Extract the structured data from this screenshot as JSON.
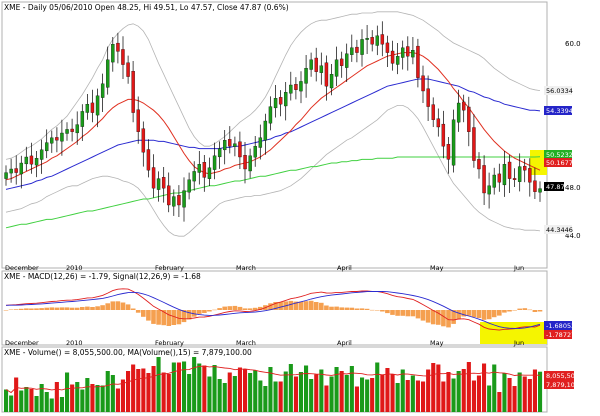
{
  "header": {
    "price_text": "XME - Daily 05/06/2010 Open 48.25, Hi 49.51, Lo 47.57, Close 47.87 (0.6%)",
    "macd_text": "XME - MACD(12,26) = -1.79, Signal(12,26,9) = -1.68",
    "volume_text": "XME - Volume() = 8,055,500.00, MA(Volume(),15) = 7,879,100.00"
  },
  "time_axis": {
    "labels": [
      "December",
      "2010",
      "February",
      "March",
      "April",
      "May",
      "Jun"
    ]
  },
  "price_panel": {
    "y_ticks": [
      {
        "label": "60.0",
        "value": 60.0
      },
      {
        "label": "48.0",
        "value": 48.0
      },
      {
        "label": "44.0",
        "value": 44.0
      }
    ],
    "value_tags": [
      {
        "label": "56.0334",
        "value": 56.0334,
        "bg": "#f0f0f0",
        "fg": "#000000"
      },
      {
        "label": "54.3394",
        "value": 54.3394,
        "bg": "#2525c8",
        "fg": "#ffffff"
      },
      {
        "label": "50.5232",
        "value": 50.5232,
        "bg": "#24b024",
        "fg": "#ffffff"
      },
      {
        "label": "50.1677",
        "value": 50.1677,
        "bg": "#e02020",
        "fg": "#ffffff"
      },
      {
        "label": "47.87",
        "value": 47.87,
        "bg": "#000000",
        "fg": "#ffffff"
      },
      {
        "label": "44.3446",
        "value": 44.3446,
        "bg": "#f0f0f0",
        "fg": "#000000"
      }
    ]
  },
  "macd_panel": {
    "value_tags": [
      {
        "label": "-1.68052",
        "bg": "#2525c8",
        "fg": "#ffffff"
      },
      {
        "label": "-1.78727",
        "bg": "#e02020",
        "fg": "#ffffff"
      }
    ]
  },
  "volume_panel": {
    "value_tags": [
      {
        "label": "8,055,500",
        "bg": "#e02020",
        "fg": "#ffffff"
      },
      {
        "label": "7,879,100",
        "bg": "#e02020",
        "fg": "#ffffff"
      }
    ]
  },
  "colors": {
    "up": "#1a9a1a",
    "down": "#e01818",
    "sma_short": "#e03020",
    "sma_mid": "#2a2ad0",
    "sma_long": "#40d040",
    "bands": "#b4b4b4",
    "macd": "#2a2ad0",
    "signal": "#e02020",
    "histogram": "#f5a050",
    "highlight": "#f5f500"
  },
  "chart_data": {
    "type": "line",
    "symbol": "XME",
    "date": "05/06/2010",
    "ohlc": {
      "open": 48.25,
      "high": 49.51,
      "low": 47.57,
      "close": 47.87,
      "change_pct": 0.6
    },
    "close": [
      49.2,
      49.5,
      49.2,
      50.0,
      50.5,
      49.9,
      50.4,
      51.1,
      51.7,
      52.1,
      51.9,
      52.5,
      52.8,
      52.6,
      53.2,
      54.3,
      54.9,
      54.2,
      55.6,
      56.6,
      58.6,
      59.9,
      59.3,
      58.2,
      57.2,
      54.2,
      52.6,
      50.9,
      49.4,
      47.9,
      48.7,
      47.9,
      46.5,
      47.2,
      46.5,
      47.7,
      48.6,
      49.3,
      49.9,
      48.8,
      49.6,
      50.6,
      51.2,
      51.9,
      51.4,
      51.6,
      50.5,
      49.5,
      50.6,
      51.4,
      52.1,
      53.5,
      54.7,
      55.4,
      54.9,
      55.9,
      56.5,
      56.1,
      56.8,
      57.9,
      58.6,
      57.6,
      58.1,
      56.4,
      57.4,
      58.6,
      58.1,
      59.1,
      59.6,
      59.2,
      60.3,
      60.4,
      59.9,
      60.6,
      59.9,
      59.2,
      58.3,
      58.9,
      59.6,
      58.9,
      59.4,
      57.1,
      56.0,
      54.7,
      53.6,
      53.0,
      51.4,
      50.3,
      53.6,
      55.0,
      54.4,
      52.6,
      50.2,
      49.5,
      47.5,
      48.1,
      49.0,
      48.4,
      49.9,
      48.7,
      48.6,
      49.7,
      49.4,
      48.4,
      47.6,
      47.87
    ],
    "sma_short": [
      48.6,
      48.7,
      48.9,
      49.1,
      49.3,
      49.5,
      49.7,
      49.9,
      50.1,
      50.4,
      50.6,
      50.9,
      51.2,
      51.5,
      51.8,
      52.2,
      52.5,
      52.9,
      53.3,
      53.7,
      54.2,
      54.6,
      54.9,
      55.1,
      55.3,
      55.3,
      55.2,
      55.0,
      54.7,
      54.4,
      54.0,
      53.5,
      52.9,
      52.2,
      51.5,
      50.8,
      50.2,
      49.7,
      49.4,
      49.2,
      49.1,
      49.2,
      49.3,
      49.5,
      49.6,
      49.8,
      49.9,
      50.0,
      50.1,
      50.3,
      50.5,
      50.8,
      51.1,
      51.5,
      51.9,
      52.3,
      52.7,
      53.2,
      53.6,
      54.1,
      54.6,
      55.0,
      55.4,
      55.7,
      56.0,
      56.3,
      56.6,
      56.9,
      57.2,
      57.5,
      57.8,
      58.1,
      58.3,
      58.5,
      58.7,
      58.9,
      59.0,
      59.1,
      59.2,
      59.2,
      59.2,
      59.1,
      58.9,
      58.6,
      58.2,
      57.8,
      57.3,
      56.8,
      56.2,
      55.7,
      55.1,
      54.6,
      54.0,
      53.4,
      52.8,
      52.3,
      51.8,
      51.4,
      51.0,
      50.7,
      50.4,
      50.2,
      50.0,
      49.8,
      49.6,
      49.4
    ],
    "sma_mid": [
      47.8,
      47.9,
      48.0,
      48.1,
      48.2,
      48.3,
      48.5,
      48.6,
      48.8,
      48.9,
      49.1,
      49.3,
      49.5,
      49.7,
      49.9,
      50.1,
      50.3,
      50.5,
      50.7,
      50.9,
      51.1,
      51.3,
      51.5,
      51.6,
      51.7,
      51.8,
      51.9,
      51.9,
      51.9,
      51.9,
      51.8,
      51.8,
      51.7,
      51.6,
      51.5,
      51.4,
      51.3,
      51.3,
      51.2,
      51.2,
      51.2,
      51.2,
      51.2,
      51.3,
      51.3,
      51.4,
      51.4,
      51.5,
      51.6,
      51.7,
      51.8,
      51.9,
      52.0,
      52.2,
      52.3,
      52.5,
      52.6,
      52.8,
      53.0,
      53.2,
      53.4,
      53.6,
      53.8,
      54.0,
      54.2,
      54.4,
      54.6,
      54.8,
      55.0,
      55.2,
      55.4,
      55.6,
      55.8,
      56.0,
      56.2,
      56.4,
      56.5,
      56.6,
      56.7,
      56.8,
      56.9,
      57.0,
      57.0,
      57.0,
      56.9,
      56.8,
      56.7,
      56.6,
      56.5,
      56.4,
      56.2,
      56.0,
      55.9,
      55.7,
      55.5,
      55.4,
      55.2,
      55.1,
      54.9,
      54.8,
      54.7,
      54.6,
      54.5,
      54.4,
      54.4,
      54.3394
    ],
    "sma_long": [
      44.6,
      44.7,
      44.8,
      44.9,
      44.9,
      45.0,
      45.1,
      45.2,
      45.3,
      45.3,
      45.4,
      45.5,
      45.6,
      45.7,
      45.8,
      45.9,
      46.0,
      46.0,
      46.1,
      46.2,
      46.3,
      46.4,
      46.5,
      46.6,
      46.7,
      46.8,
      46.9,
      47.0,
      47.0,
      47.1,
      47.2,
      47.3,
      47.4,
      47.5,
      47.5,
      47.6,
      47.7,
      47.8,
      47.9,
      48.0,
      48.1,
      48.1,
      48.2,
      48.3,
      48.4,
      48.5,
      48.5,
      48.6,
      48.7,
      48.8,
      48.9,
      48.9,
      49.0,
      49.1,
      49.2,
      49.3,
      49.4,
      49.4,
      49.5,
      49.6,
      49.7,
      49.7,
      49.8,
      49.9,
      50.0,
      50.0,
      50.1,
      50.1,
      50.2,
      50.2,
      50.3,
      50.3,
      50.3,
      50.4,
      50.4,
      50.4,
      50.4,
      50.5,
      50.5,
      50.5,
      50.5,
      50.5,
      50.5,
      50.5,
      50.5,
      50.5,
      50.5,
      50.5,
      50.5,
      50.5,
      50.5,
      50.5,
      50.5,
      50.5,
      50.5,
      50.5,
      50.5,
      50.5,
      50.5,
      50.5,
      50.5,
      50.5,
      50.5,
      50.5,
      50.5,
      50.5232
    ],
    "band_upper": [
      50.3,
      50.4,
      50.6,
      50.9,
      51.2,
      51.4,
      51.7,
      52.0,
      52.4,
      52.8,
      53.1,
      53.5,
      53.9,
      54.5,
      55.1,
      55.7,
      56.4,
      57.1,
      57.9,
      58.6,
      59.6,
      60.3,
      60.8,
      61.2,
      61.5,
      61.6,
      61.4,
      61.0,
      60.3,
      59.3,
      58.3,
      57.4,
      56.5,
      55.6,
      54.7,
      53.8,
      52.9,
      52.2,
      51.7,
      51.4,
      51.4,
      51.6,
      51.9,
      52.2,
      52.6,
      53.0,
      53.4,
      53.7,
      54.0,
      54.4,
      54.9,
      55.5,
      56.3,
      57.2,
      58.1,
      59.0,
      59.8,
      60.4,
      60.9,
      61.3,
      61.6,
      61.8,
      61.9,
      61.9,
      62.0,
      62.1,
      62.2,
      62.3,
      62.4,
      62.4,
      62.5,
      62.5,
      62.5,
      62.6,
      62.6,
      62.6,
      62.6,
      62.6,
      62.5,
      62.4,
      62.3,
      62.1,
      61.9,
      61.6,
      61.3,
      61.0,
      60.6,
      60.3,
      60.0,
      59.8,
      59.6,
      59.4,
      59.2,
      59.0,
      58.7,
      58.3,
      57.9,
      57.6,
      57.3,
      57.0,
      56.8,
      56.6,
      56.4,
      56.2,
      56.1,
      56.0334
    ],
    "band_lower": [
      45.9,
      46.0,
      46.1,
      46.2,
      46.4,
      46.6,
      46.7,
      46.9,
      47.2,
      47.4,
      47.6,
      47.8,
      48.0,
      48.1,
      48.1,
      48.3,
      48.5,
      48.7,
      48.8,
      48.9,
      48.9,
      48.8,
      48.7,
      48.5,
      48.4,
      48.2,
      47.9,
      47.4,
      46.8,
      46.1,
      45.4,
      44.8,
      44.3,
      44.0,
      43.9,
      43.9,
      44.2,
      44.6,
      45.0,
      45.4,
      45.8,
      46.2,
      46.6,
      46.8,
      46.9,
      47.0,
      47.1,
      47.2,
      47.2,
      47.3,
      47.3,
      47.4,
      47.5,
      47.6,
      47.7,
      47.9,
      48.1,
      48.4,
      48.7,
      49.1,
      49.5,
      49.9,
      50.3,
      50.7,
      51.0,
      51.3,
      51.6,
      51.9,
      52.1,
      52.4,
      52.7,
      53.0,
      53.3,
      53.6,
      54.0,
      54.4,
      54.6,
      54.8,
      54.8,
      54.6,
      54.2,
      53.7,
      53.0,
      52.2,
      51.4,
      50.6,
      49.8,
      49.0,
      48.3,
      47.8,
      47.3,
      46.8,
      46.3,
      45.9,
      45.6,
      45.3,
      45.1,
      44.9,
      44.7,
      44.6,
      44.5,
      44.5,
      44.4,
      44.4,
      44.4,
      44.3446
    ],
    "macd": [
      0.55,
      0.6,
      0.62,
      0.68,
      0.74,
      0.76,
      0.8,
      0.86,
      0.93,
      1.0,
      1.04,
      1.1,
      1.15,
      1.17,
      1.22,
      1.32,
      1.42,
      1.44,
      1.56,
      1.72,
      1.99,
      2.28,
      2.45,
      2.49,
      2.46,
      2.19,
      1.83,
      1.4,
      0.93,
      0.43,
      0.1,
      -0.22,
      -0.57,
      -0.77,
      -0.98,
      -1.04,
      -1.02,
      -0.94,
      -0.83,
      -0.82,
      -0.74,
      -0.6,
      -0.45,
      -0.28,
      -0.18,
      -0.09,
      -0.1,
      -0.18,
      -0.15,
      -0.07,
      0.06,
      0.27,
      0.53,
      0.78,
      0.93,
      1.13,
      1.33,
      1.44,
      1.58,
      1.77,
      1.97,
      2.03,
      2.1,
      2.0,
      1.99,
      2.07,
      2.07,
      2.13,
      2.19,
      2.18,
      2.24,
      2.25,
      2.19,
      2.16,
      2.07,
      1.92,
      1.72,
      1.57,
      1.49,
      1.35,
      1.25,
      0.96,
      0.64,
      0.29,
      -0.06,
      -0.36,
      -0.75,
      -1.14,
      -1.17,
      -1.06,
      -1.03,
      -1.14,
      -1.41,
      -1.67,
      -2.03,
      -2.23,
      -2.3,
      -2.37,
      -2.27,
      -2.25,
      -2.2,
      -2.06,
      -1.98,
      -1.97,
      -2.0,
      -1.79
    ],
    "signal": [
      0.55,
      0.56,
      0.57,
      0.59,
      0.62,
      0.65,
      0.68,
      0.72,
      0.76,
      0.81,
      0.86,
      0.91,
      0.96,
      1.0,
      1.05,
      1.1,
      1.17,
      1.22,
      1.29,
      1.37,
      1.5,
      1.65,
      1.81,
      1.94,
      2.05,
      2.08,
      2.03,
      1.9,
      1.71,
      1.45,
      1.18,
      0.9,
      0.61,
      0.33,
      0.07,
      -0.15,
      -0.32,
      -0.45,
      -0.54,
      -0.6,
      -0.63,
      -0.62,
      -0.59,
      -0.53,
      -0.46,
      -0.39,
      -0.33,
      -0.3,
      -0.27,
      -0.23,
      -0.17,
      -0.08,
      0.04,
      0.19,
      0.34,
      0.5,
      0.66,
      0.82,
      0.97,
      1.12,
      1.29,
      1.44,
      1.57,
      1.67,
      1.75,
      1.82,
      1.88,
      1.95,
      2.02,
      2.07,
      2.12,
      2.16,
      2.18,
      2.19,
      2.18,
      2.15,
      2.08,
      2.0,
      1.92,
      1.81,
      1.71,
      1.58,
      1.42,
      1.22,
      0.99,
      0.73,
      0.45,
      0.14,
      -0.15,
      -0.37,
      -0.55,
      -0.71,
      -0.88,
      -1.08,
      -1.31,
      -1.55,
      -1.77,
      -1.96,
      -2.08,
      -2.14,
      -2.17,
      -2.16,
      -2.11,
      -2.0,
      -1.85,
      -1.68
    ],
    "volume": [
      4.5,
      3.3,
      6.9,
      4.3,
      5.0,
      4.6,
      3.2,
      5.6,
      4.0,
      2.7,
      6.0,
      3.0,
      7.9,
      5.5,
      6.0,
      4.5,
      6.8,
      5.6,
      5.4,
      5.3,
      8.2,
      7.4,
      4.7,
      6.5,
      8.2,
      9.5,
      8.6,
      8.7,
      7.8,
      9.2,
      11.0,
      7.9,
      7.6,
      9.9,
      9.9,
      10.1,
      7.6,
      11.0,
      9.7,
      9.3,
      7.1,
      9.4,
      6.6,
      5.8,
      7.9,
      7.2,
      8.9,
      8.6,
      7.8,
      8.3,
      6.3,
      5.2,
      9.0,
      6.1,
      6.1,
      8.1,
      9.6,
      7.1,
      8.0,
      9.3,
      6.6,
      7.5,
      8.5,
      5.3,
      7.1,
      9.0,
      8.2,
      7.4,
      9.2,
      5.1,
      6.9,
      6.5,
      6.8,
      9.9,
      7.5,
      8.8,
      7.6,
      5.8,
      8.5,
      6.4,
      7.3,
      6.3,
      6.1,
      8.5,
      9.8,
      9.5,
      6.1,
      8.0,
      6.7,
      8.2,
      8.6,
      10.0,
      6.3,
      7.3,
      9.7,
      5.3,
      9.5,
      4.0,
      7.8,
      6.8,
      5.2,
      7.9,
      7.1,
      6.6,
      8.5,
      8.06
    ],
    "volume_unit": "millions",
    "ma_volume": 7.879,
    "macd_value": -1.79,
    "signal_value": -1.68
  }
}
